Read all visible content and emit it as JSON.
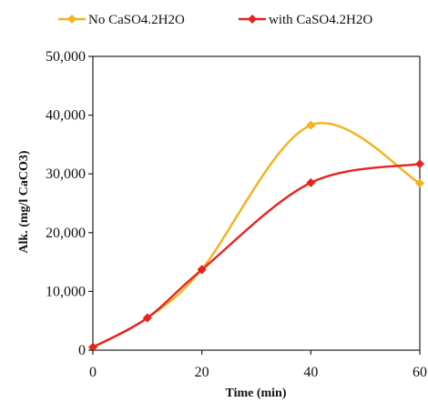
{
  "chart_data": {
    "type": "line",
    "xlabel": "Time (min)",
    "ylabel": "Alk. (mg/l CaCO3)",
    "xlim": [
      0,
      60
    ],
    "ylim": [
      0,
      50000
    ],
    "x_ticks": [
      "0",
      "20",
      "40",
      "60"
    ],
    "y_ticks": [
      "0",
      "10,000",
      "20,000",
      "30,000",
      "40,000",
      "50,000"
    ],
    "grid": false,
    "legend_position": "top",
    "smooth": true,
    "series": [
      {
        "name": "No CaSO4.2H2O",
        "color": "#f5b21b",
        "x": [
          0,
          10,
          20,
          40,
          60
        ],
        "y": [
          500,
          5500,
          13800,
          38300,
          28400
        ]
      },
      {
        "name": "with CaSO4.2H2O",
        "color": "#e8231f",
        "x": [
          0,
          10,
          20,
          40,
          60
        ],
        "y": [
          500,
          5500,
          13700,
          28500,
          31700
        ]
      }
    ]
  }
}
